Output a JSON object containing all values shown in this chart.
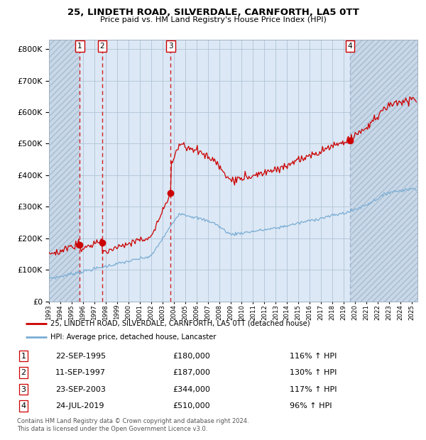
{
  "title": "25, LINDETH ROAD, SILVERDALE, CARNFORTH, LA5 0TT",
  "subtitle": "Price paid vs. HM Land Registry's House Price Index (HPI)",
  "xlim_start": 1993.0,
  "xlim_end": 2025.5,
  "ylim": [
    0,
    830000
  ],
  "yticks": [
    0,
    100000,
    200000,
    300000,
    400000,
    500000,
    600000,
    700000,
    800000
  ],
  "sale_dates": [
    1995.72,
    1997.7,
    2003.73,
    2019.55
  ],
  "sale_prices": [
    180000,
    187000,
    344000,
    510000
  ],
  "sale_labels": [
    "1",
    "2",
    "3",
    "4"
  ],
  "sale_info": [
    {
      "num": "1",
      "date": "22-SEP-1995",
      "price": "£180,000",
      "hpi": "116% ↑ HPI"
    },
    {
      "num": "2",
      "date": "11-SEP-1997",
      "price": "£187,000",
      "hpi": "130% ↑ HPI"
    },
    {
      "num": "3",
      "date": "23-SEP-2003",
      "price": "£344,000",
      "hpi": "117% ↑ HPI"
    },
    {
      "num": "4",
      "date": "24-JUL-2019",
      "price": "£510,000",
      "hpi": "96% ↑ HPI"
    }
  ],
  "red_line_color": "#cc0000",
  "blue_line_color": "#7aadd4",
  "bg_color": "#dce8f5",
  "grid_color": "#b0c4d8",
  "hatch_bg": "#c8d8e8",
  "footnote": "Contains HM Land Registry data © Crown copyright and database right 2024.\nThis data is licensed under the Open Government Licence v3.0.",
  "legend_line1": "25, LINDETH ROAD, SILVERDALE, CARNFORTH, LA5 0TT (detached house)",
  "legend_line2": "HPI: Average price, detached house, Lancaster"
}
